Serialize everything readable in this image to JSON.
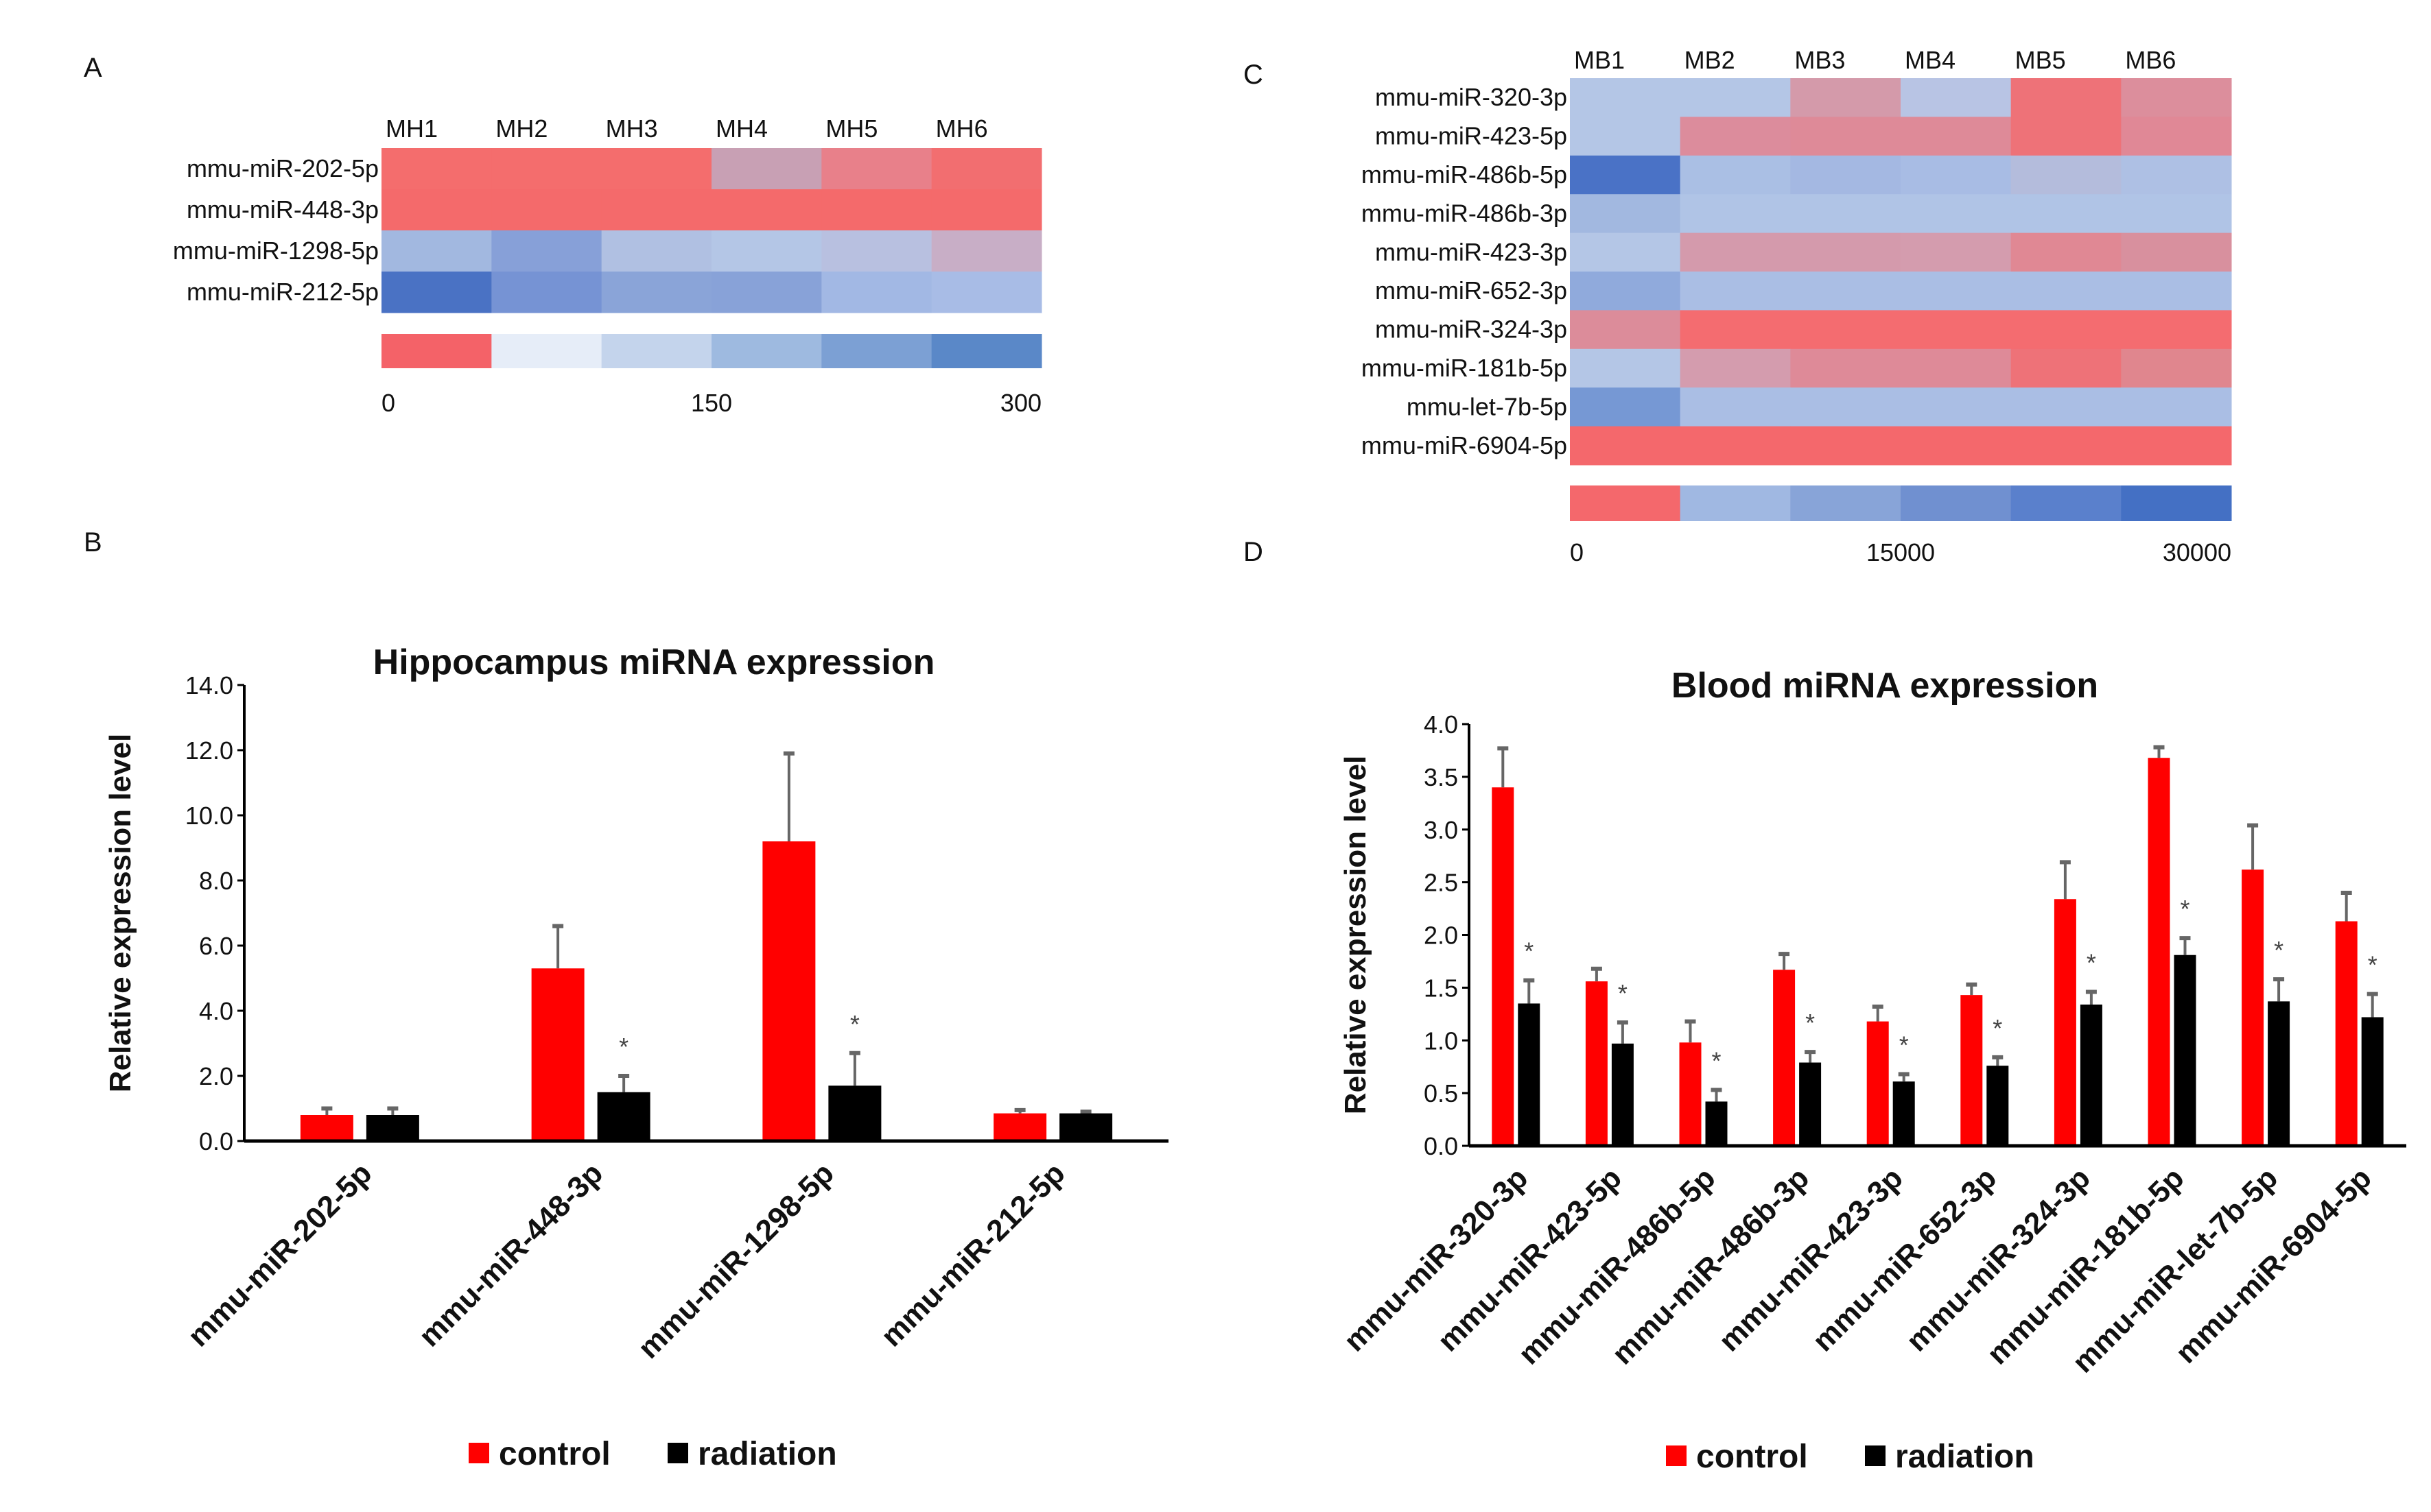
{
  "panels": {
    "a": "A",
    "b": "B",
    "c": "C",
    "d": "D"
  },
  "chart_data": [
    {
      "type": "heatmap",
      "id": "A",
      "columns": [
        "MH1",
        "MH2",
        "MH3",
        "MH4",
        "MH5",
        "MH6"
      ],
      "rows": [
        "mmu-miR-202-5p",
        "mmu-miR-448-3p",
        "mmu-miR-1298-5p",
        "mmu-miR-212-5p"
      ],
      "cell_colors": [
        [
          "#f46d6d",
          "#f46d6d",
          "#f46d6d",
          "#c8a0b4",
          "#e8808a",
          "#f26e70"
        ],
        [
          "#f46a6b",
          "#f46a6b",
          "#f46a6b",
          "#f46a6b",
          "#f46a6b",
          "#f46a6b"
        ],
        [
          "#a2b8e0",
          "#87a0d8",
          "#b0c0e2",
          "#b4c6e6",
          "#b8c0e0",
          "#c8aec6"
        ],
        [
          "#4a72c4",
          "#7693d4",
          "#8aa4d8",
          "#88a2d8",
          "#a2b8e4",
          "#a8bce6"
        ]
      ],
      "colorbar": [
        "#f46268",
        "#e6edf8",
        "#c4d4ec",
        "#9ebae0",
        "#7ca0d4",
        "#5a88c8"
      ],
      "colorbar_ticks": [
        "0",
        "150",
        "300"
      ],
      "range": [
        0,
        300
      ]
    },
    {
      "type": "heatmap",
      "id": "C",
      "columns": [
        "MB1",
        "MB2",
        "MB3",
        "MB4",
        "MB5",
        "MB6"
      ],
      "rows": [
        "mmu-miR-320-3p",
        "mmu-miR-423-5p",
        "mmu-miR-486b-5p",
        "mmu-miR-486b-3p",
        "mmu-miR-423-3p",
        "mmu-miR-652-3p",
        "mmu-miR-324-3p",
        "mmu-miR-181b-5p",
        "mmu-let-7b-5p",
        "mmu-miR-6904-5p"
      ],
      "cell_colors": [
        [
          "#b4c6e6",
          "#b4c6e6",
          "#d49aaa",
          "#b8c4e4",
          "#ee7278",
          "#dc8e9c"
        ],
        [
          "#b4c6e6",
          "#dc8c9c",
          "#de8a98",
          "#de8a98",
          "#ee7278",
          "#e08896"
        ],
        [
          "#4a72c6",
          "#aabfe4",
          "#a4b8e2",
          "#a8bce4",
          "#b4bcdc",
          "#aec0e4"
        ],
        [
          "#a2b8e0",
          "#b0c4e6",
          "#b0c4e6",
          "#b0c4e6",
          "#b0c4e6",
          "#b0c4e6"
        ],
        [
          "#b4c6e6",
          "#d49aac",
          "#d49aac",
          "#d49cae",
          "#e08894",
          "#d8909e"
        ],
        [
          "#90aadc",
          "#aabee4",
          "#aabee4",
          "#aabee4",
          "#aabee4",
          "#aabee4"
        ],
        [
          "#dc8c9a",
          "#f46c70",
          "#f46c70",
          "#f46c70",
          "#f46c70",
          "#f46c70"
        ],
        [
          "#b4c6e6",
          "#d49cae",
          "#de8a98",
          "#de8a98",
          "#ee7278",
          "#e0868e"
        ],
        [
          "#7698d4",
          "#aabee4",
          "#aabee4",
          "#aabee4",
          "#aabee4",
          "#aabee4"
        ],
        [
          "#f4686c",
          "#f4686c",
          "#f4686c",
          "#f4686c",
          "#f4686c",
          "#f4686c"
        ]
      ],
      "colorbar": [
        "#f4686c",
        "#a0b8e2",
        "#88a4d8",
        "#7090d0",
        "#5a80cc",
        "#4470c4"
      ],
      "colorbar_ticks": [
        "0",
        "15000",
        "30000"
      ],
      "range": [
        0,
        30000
      ]
    },
    {
      "type": "bar",
      "id": "B",
      "title": "Hippocampus miRNA expression",
      "ylabel": "Relative expression level",
      "xlabel": "",
      "ylim": [
        0,
        14
      ],
      "yticks": [
        "0.0",
        "2.0",
        "4.0",
        "6.0",
        "8.0",
        "10.0",
        "12.0",
        "14.0"
      ],
      "categories": [
        "mmu-miR-202-5p",
        "mmu-miR-448-3p",
        "mmu-miR-1298-5p",
        "mmu-miR-212-5p"
      ],
      "series": [
        {
          "name": "control",
          "color": "#ff0000",
          "values": [
            0.8,
            5.3,
            9.2,
            0.85
          ],
          "error_top": [
            1.0,
            6.6,
            11.9,
            0.95
          ]
        },
        {
          "name": "radiation",
          "color": "#000000",
          "values": [
            0.8,
            1.5,
            1.7,
            0.85
          ],
          "error_top": [
            1.0,
            2.0,
            2.7,
            0.9
          ]
        }
      ],
      "significance_marker": "*",
      "significant": [
        false,
        true,
        true,
        false
      ],
      "legend": "bottom"
    },
    {
      "type": "bar",
      "id": "D",
      "title": "Blood miRNA expression",
      "ylabel": "Relative expression level",
      "xlabel": "",
      "ylim": [
        0,
        4
      ],
      "yticks": [
        "0.0",
        "0.5",
        "1.0",
        "1.5",
        "2.0",
        "2.5",
        "3.0",
        "3.5",
        "4.0"
      ],
      "categories": [
        "mmu-miR-320-3p",
        "mmu-miR-423-5p",
        "mmu-miR-486b-5p",
        "mmu-miR-486b-3p",
        "mmu-miR-423-3p",
        "mmu-miR-652-3p",
        "mmu-miR-324-3p",
        "mmu-miR-181b-5p",
        "mmu-miR-let-7b-5p",
        "mmu-miR-6904-5p"
      ],
      "series": [
        {
          "name": "control",
          "color": "#ff0000",
          "values": [
            3.4,
            1.56,
            0.98,
            1.67,
            1.18,
            1.43,
            2.34,
            3.68,
            2.62,
            2.13
          ],
          "error_top": [
            3.77,
            1.68,
            1.18,
            1.82,
            1.32,
            1.53,
            2.69,
            3.78,
            3.04,
            2.4
          ]
        },
        {
          "name": "radiation",
          "color": "#000000",
          "values": [
            1.35,
            0.97,
            0.42,
            0.79,
            0.61,
            0.76,
            1.34,
            1.81,
            1.37,
            1.22
          ],
          "error_top": [
            1.57,
            1.17,
            0.53,
            0.89,
            0.68,
            0.84,
            1.46,
            1.97,
            1.58,
            1.44
          ]
        }
      ],
      "significance_marker": "*",
      "significant": [
        true,
        true,
        true,
        true,
        true,
        true,
        true,
        true,
        true,
        true
      ],
      "legend": "bottom"
    }
  ]
}
